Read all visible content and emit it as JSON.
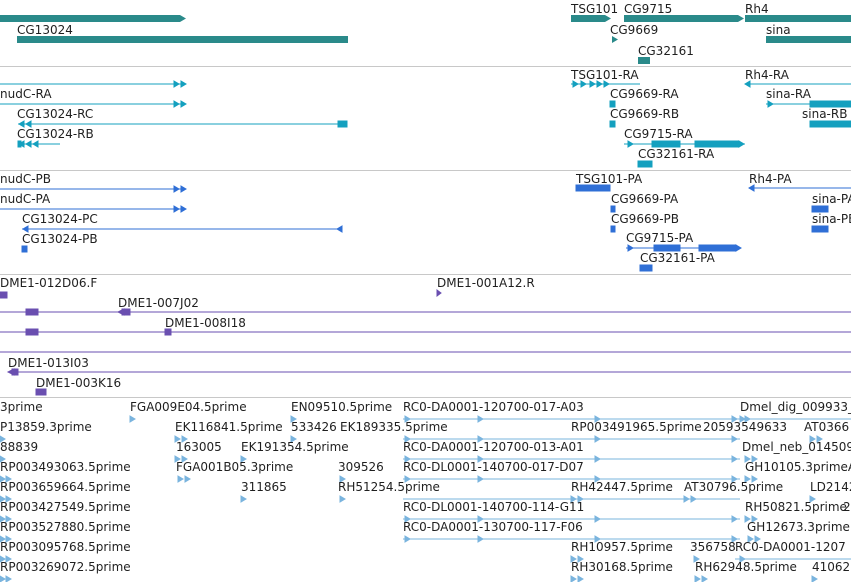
{
  "tracks": {
    "genes": {
      "labels": [
        "CG13024",
        "TSG101",
        "CG9715",
        "Rh4",
        "CG9669",
        "sina",
        "CG32161"
      ],
      "color": "#2a8a8a"
    },
    "transcripts": {
      "labels": [
        "nudC-RA",
        "CG13024-RC",
        "CG13024-RB",
        "TSG101-RA",
        "CG9669-RA",
        "CG9669-RB",
        "CG9715-RA",
        "CG32161-RA",
        "Rh4-RA",
        "sina-RA",
        "sina-RB"
      ],
      "color": "#14a0bf"
    },
    "proteins": {
      "labels": [
        "nudC-PB",
        "nudC-PA",
        "CG13024-PC",
        "CG13024-PB",
        "TSG101-PA",
        "CG9669-PA",
        "CG9669-PB",
        "CG9715-PA",
        "CG32161-PA",
        "Rh4-PA",
        "sina-PA",
        "sina-PB"
      ],
      "color": "#2f6fd6"
    },
    "clones": {
      "labels": [
        "DME1-012D06.F",
        "DME1-001A12.R",
        "DME1-007J02",
        "DME1-008I18",
        "DME1-013I03",
        "DME1-003K16"
      ],
      "color": "#6a4fb0"
    },
    "ests": {
      "labels": [
        "3prime",
        "FGA009E04.5prime",
        "EN09510.5prime",
        "RC0-DA0001-120700-017-A03",
        "Dmel_dig_009933_",
        "P13859.3prime",
        "EK116841.5prime",
        "533426",
        "EK189335.5prime",
        "RP003491965.5prime",
        "20593549633",
        "AT0366",
        "88839",
        "163005",
        "EK191354.5prime",
        "RC0-DA0001-120700-013-A01",
        "Dmel_neb_014509",
        "RP003493063.5prime",
        "FGA001B05.3prime",
        "309526",
        "RC0-DL0001-140700-017-D07",
        "GH10105.3primeA",
        "RP003659664.5prime",
        "311865",
        "RH51254.5prime",
        "RH42447.5prime",
        "AT30796.5prime",
        "LD2142",
        "RP003427549.5prime",
        "RC0-DL0001-140700-114-G11",
        "RH50821.5prime",
        "2",
        "RP003527880.5prime",
        "RC0-DA0001-130700-117-F06",
        "GH12673.3prime",
        "RP003095768.5prime",
        "RH10957.5prime",
        "356758",
        "RC0-DA0001-1207",
        "RP003269072.5prime",
        "RH30168.5prime",
        "RH62948.5prime",
        "41062"
      ],
      "color": "#7ab4de"
    }
  }
}
